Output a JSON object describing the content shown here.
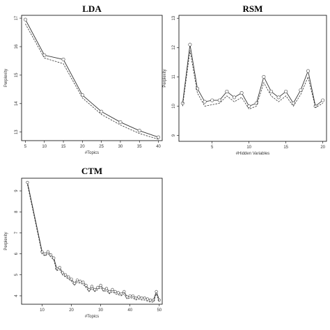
{
  "chart_data": [
    {
      "type": "line",
      "title": "LDA",
      "xlabel": "#Topics",
      "ylabel": "Perplexity",
      "xlim": [
        4,
        41
      ],
      "ylim": [
        12.7,
        17.1
      ],
      "xticks": [
        5,
        10,
        15,
        20,
        25,
        30,
        35,
        40
      ],
      "yticks": [
        13,
        14,
        15,
        16,
        17
      ],
      "x": [
        5,
        10,
        15,
        20,
        25,
        30,
        35,
        40
      ],
      "series": [
        {
          "style": "solid",
          "markers": true,
          "values": [
            16.95,
            15.7,
            15.55,
            14.3,
            13.72,
            13.35,
            13.05,
            12.82
          ]
        },
        {
          "style": "dashed",
          "markers": false,
          "values": [
            16.8,
            15.6,
            15.4,
            14.2,
            13.62,
            13.25,
            12.95,
            12.75
          ]
        }
      ]
    },
    {
      "type": "line",
      "title": "RSM",
      "xlabel": "#Hidden Variables",
      "ylabel": "Perplexity",
      "xlim": [
        0.5,
        20.5
      ],
      "ylim": [
        8.8,
        13.1
      ],
      "xticks": [
        5,
        10,
        15,
        20
      ],
      "yticks": [
        9,
        10,
        11,
        12,
        13
      ],
      "x": [
        1,
        2,
        3,
        4,
        5,
        6,
        7,
        8,
        9,
        10,
        11,
        12,
        13,
        14,
        15,
        16,
        17,
        18,
        19,
        20
      ],
      "series": [
        {
          "style": "solid",
          "markers": true,
          "values": [
            10.1,
            12.1,
            10.6,
            10.15,
            10.2,
            10.2,
            10.5,
            10.3,
            10.45,
            10.0,
            10.1,
            11.0,
            10.5,
            10.3,
            10.5,
            10.1,
            10.55,
            11.2,
            10.0,
            10.2
          ]
        },
        {
          "style": "dashed",
          "markers": false,
          "values": [
            10.0,
            11.9,
            10.45,
            10.0,
            10.05,
            10.1,
            10.35,
            10.15,
            10.3,
            9.9,
            10.0,
            10.8,
            10.35,
            10.15,
            10.35,
            10.0,
            10.4,
            11.0,
            9.95,
            10.1
          ]
        }
      ]
    },
    {
      "type": "line",
      "title": "CTM",
      "xlabel": "#Topics",
      "ylabel": "Perplexity",
      "xlim": [
        3,
        51
      ],
      "ylim": [
        3.6,
        9.6
      ],
      "xticks": [
        10,
        20,
        30,
        40,
        50
      ],
      "yticks": [
        4,
        5,
        6,
        7,
        8,
        9
      ],
      "x": [
        5,
        10,
        11,
        12,
        13,
        14,
        15,
        16,
        17,
        18,
        19,
        20,
        21,
        22,
        23,
        24,
        25,
        26,
        27,
        28,
        29,
        30,
        31,
        32,
        33,
        34,
        35,
        36,
        37,
        38,
        39,
        40,
        41,
        42,
        43,
        44,
        45,
        46,
        47,
        48,
        49,
        50
      ],
      "series": [
        {
          "style": "solid",
          "markers": true,
          "values": [
            9.4,
            6.1,
            6.0,
            6.1,
            5.95,
            5.8,
            5.3,
            5.35,
            5.1,
            5.0,
            4.9,
            4.8,
            4.6,
            4.75,
            4.7,
            4.65,
            4.5,
            4.3,
            4.45,
            4.3,
            4.4,
            4.5,
            4.3,
            4.35,
            4.2,
            4.3,
            4.2,
            4.15,
            4.1,
            4.2,
            3.95,
            4.0,
            4.0,
            3.9,
            3.95,
            3.9,
            3.9,
            3.85,
            3.8,
            3.8,
            4.2,
            3.8
          ]
        },
        {
          "style": "dashed",
          "markers": false,
          "values": [
            9.3,
            6.0,
            5.9,
            6.0,
            5.85,
            5.7,
            5.2,
            5.25,
            5.0,
            4.9,
            4.8,
            4.7,
            4.5,
            4.65,
            4.6,
            4.55,
            4.4,
            4.2,
            4.35,
            4.2,
            4.3,
            4.4,
            4.2,
            4.25,
            4.1,
            4.2,
            4.1,
            4.05,
            4.0,
            4.1,
            3.85,
            3.9,
            3.9,
            3.8,
            3.85,
            3.8,
            3.8,
            3.75,
            3.7,
            3.7,
            4.1,
            3.7
          ]
        }
      ]
    }
  ]
}
